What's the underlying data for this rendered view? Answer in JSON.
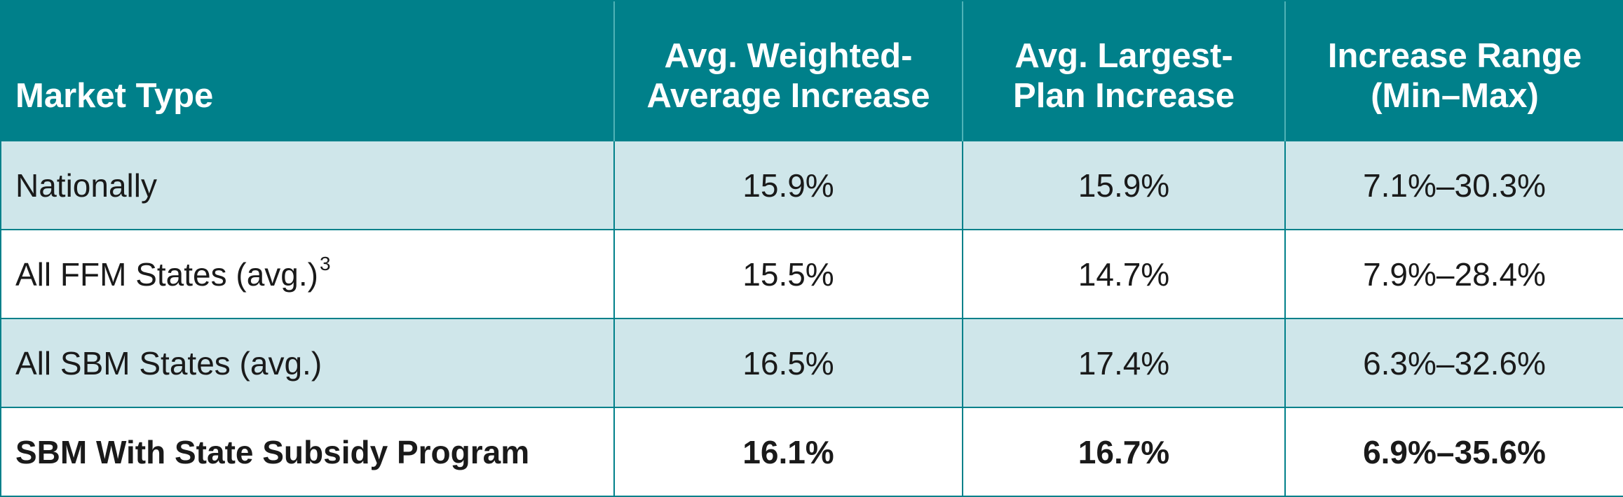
{
  "table": {
    "headers": {
      "market_type": "Market Type",
      "avg_weighted_line1": "Avg. Weighted-",
      "avg_weighted_line2": "Average Increase",
      "avg_largest_line1": "Avg. Largest-",
      "avg_largest_line2": "Plan Increase",
      "range_line1": "Increase Range",
      "range_line2": "(Min–Max)"
    },
    "rows": [
      {
        "market_type": "Nationally",
        "footnote": "",
        "avg_weighted": "15.9%",
        "avg_largest": "15.9%",
        "range": "7.1%–30.3%",
        "shaded": true,
        "bold": false
      },
      {
        "market_type": "All FFM States (avg.)",
        "footnote": "3",
        "avg_weighted": "15.5%",
        "avg_largest": "14.7%",
        "range": "7.9%–28.4%",
        "shaded": false,
        "bold": false
      },
      {
        "market_type": "All SBM States (avg.)",
        "footnote": "",
        "avg_weighted": "16.5%",
        "avg_largest": "17.4%",
        "range": "6.3%–32.6%",
        "shaded": true,
        "bold": false
      },
      {
        "market_type": "SBM With State Subsidy Program",
        "footnote": "",
        "avg_weighted": "16.1%",
        "avg_largest": "16.7%",
        "range": "6.9%–35.6%",
        "shaded": false,
        "bold": true
      }
    ],
    "colors": {
      "header_bg": "#00808a",
      "header_text": "#ffffff",
      "shaded_row_bg": "#cfe6ea",
      "border": "#00808a"
    }
  }
}
